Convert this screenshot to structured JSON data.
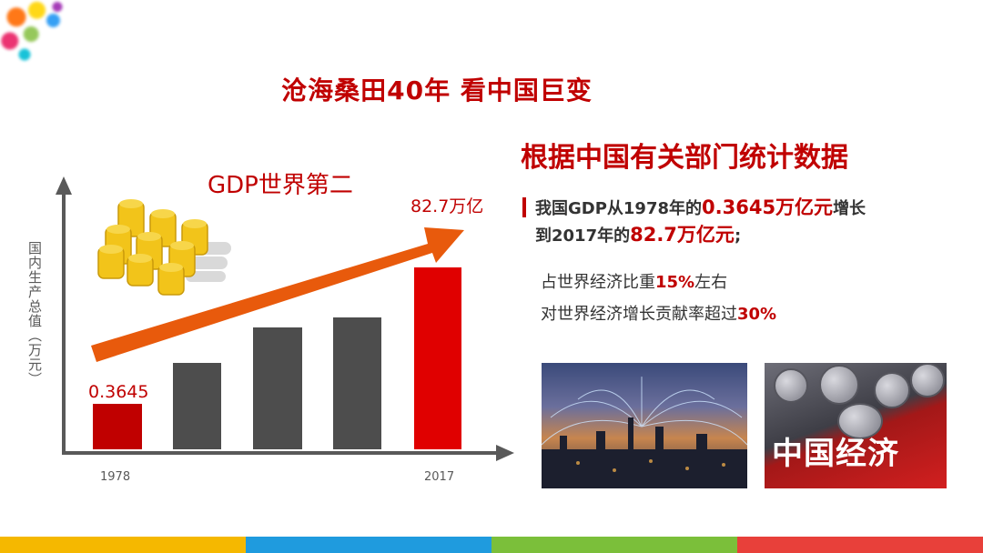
{
  "slide": {
    "title": "沧海桑田40年  看中国巨变",
    "subtitle": "根据中国有关部门统计数据",
    "point1_line1_pre": "我国GDP从1978年的",
    "point1_value_start": "0.3645万亿元",
    "point1_line1_post": "增长",
    "point1_line2_pre": "到2017年的",
    "point1_value_end": "82.7万亿元",
    "point1_line2_post": ";",
    "share_pre": "占世界经济比重",
    "share_value": "15%",
    "share_post": "左右",
    "contrib_pre": "对世界经济增长贡献率超过",
    "contrib_value": "30%",
    "photo_text": "中国经济"
  },
  "chart": {
    "ylabel": "国内生产总值（万元）",
    "arrow_label": "GDP世界第二",
    "first_label": "0.3645",
    "last_label": "82.7万亿",
    "x_first": "1978",
    "x_last": "2017"
  },
  "chart_data": {
    "type": "bar",
    "categories": [
      "1978",
      "",
      "",
      "",
      "2017"
    ],
    "values": [
      0.3645,
      null,
      null,
      null,
      82.7
    ],
    "title": "",
    "ylabel": "国内生产总值（万元）",
    "series": [
      {
        "values": [
          0.3645,
          null,
          null,
          null,
          82.7
        ]
      }
    ]
  },
  "colors": {
    "red": "#c00000",
    "bar_gray": "#4d4d4d",
    "bar_red": "#e00000",
    "arrow": "#e85a0c",
    "strip": [
      "#f5b800",
      "#1f9bde",
      "#7bbf3a",
      "#e8403a"
    ]
  }
}
